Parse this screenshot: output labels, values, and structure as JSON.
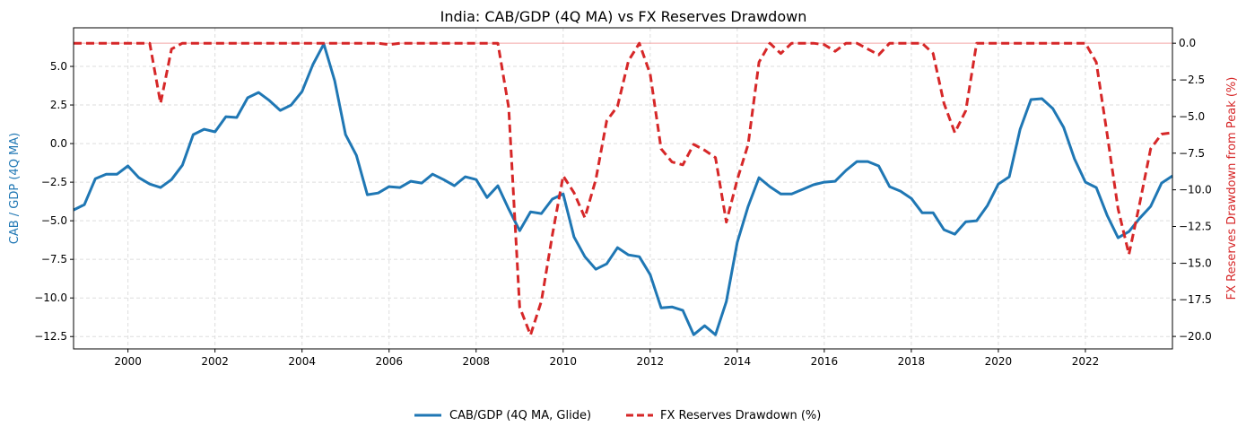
{
  "chart_data": {
    "type": "line",
    "title": "India: CAB/GDP (4Q MA) vs FX Reserves Drawdown",
    "xlabel": "",
    "ylabel_left": "CAB / GDP (4Q MA)",
    "ylabel_right": "FX Reserves Drawdown from Peak (%)",
    "x_start": 1998.75,
    "x_step": 0.25,
    "xlim": [
      1998.75,
      2024.0
    ],
    "ylim_left": [
      -13.3,
      7.5
    ],
    "ylim_right": [
      -20.85,
      1.05
    ],
    "x_ticks": [
      2000,
      2002,
      2004,
      2006,
      2008,
      2010,
      2012,
      2014,
      2016,
      2018,
      2020,
      2022
    ],
    "y_ticks_left": [
      5.0,
      2.5,
      0.0,
      -2.5,
      -5.0,
      -7.5,
      -10.0,
      -12.5
    ],
    "y_ticks_right": [
      0.0,
      -2.5,
      -5.0,
      -7.5,
      -10.0,
      -12.5,
      -15.0,
      -17.5,
      -20.0
    ],
    "grid": true,
    "reference_line_right": 0.0,
    "legend_position": "bottom-center",
    "colors": {
      "cab": "#1f77b4",
      "fx": "#d62728",
      "ref": "#f4a6a6",
      "grid": "#dddddd"
    },
    "series": [
      {
        "name": "CAB/GDP (4Q MA, Glide)",
        "axis": "left",
        "style": "solid",
        "values": [
          -4.3,
          -3.95,
          -2.27,
          -1.98,
          -1.98,
          -1.45,
          -2.21,
          -2.62,
          -2.85,
          -2.33,
          -1.4,
          0.58,
          0.93,
          0.76,
          1.74,
          1.69,
          2.97,
          3.31,
          2.79,
          2.15,
          2.5,
          3.37,
          5.12,
          6.45,
          4.07,
          0.58,
          -0.76,
          -3.31,
          -3.2,
          -2.79,
          -2.85,
          -2.44,
          -2.56,
          -1.98,
          -2.33,
          -2.73,
          -2.15,
          -2.33,
          -3.49,
          -2.73,
          -4.24,
          -5.64,
          -4.42,
          -4.53,
          -3.6,
          -3.26,
          -6.05,
          -7.33,
          -8.14,
          -7.79,
          -6.74,
          -7.21,
          -7.33,
          -8.49,
          -10.64,
          -10.58,
          -10.81,
          -12.38,
          -11.8,
          -12.38,
          -10.23,
          -6.4,
          -4.07,
          -2.21,
          -2.79,
          -3.26,
          -3.26,
          -2.97,
          -2.67,
          -2.5,
          -2.44,
          -1.74,
          -1.16,
          -1.16,
          -1.45,
          -2.79,
          -3.08,
          -3.55,
          -4.48,
          -4.48,
          -5.58,
          -5.87,
          -5.06,
          -5.0,
          -4.01,
          -2.62,
          -2.15,
          0.93,
          2.85,
          2.91,
          2.27,
          1.05,
          -0.99,
          -2.5,
          -2.85,
          -4.65,
          -6.1,
          -5.7,
          -4.83,
          -4.07,
          -2.56,
          -2.09
        ]
      },
      {
        "name": "FX Reserves Drawdown (%)",
        "axis": "right",
        "style": "dashed",
        "values": [
          0,
          0,
          0,
          0,
          0,
          0,
          0,
          0,
          -4.1,
          -0.4,
          0,
          0,
          0,
          0,
          0,
          0,
          0,
          0,
          0,
          0,
          0,
          0,
          0,
          0,
          0,
          0,
          0,
          0,
          0,
          -0.1,
          0,
          0,
          0,
          0,
          0,
          0,
          0,
          0,
          0,
          0,
          -4.4,
          -18.0,
          -19.9,
          -17.6,
          -13.1,
          -9.05,
          -10.2,
          -11.9,
          -9.3,
          -5.3,
          -4.3,
          -1.2,
          0,
          -2.1,
          -7.2,
          -8.1,
          -8.3,
          -6.9,
          -7.3,
          -7.8,
          -12.2,
          -9.3,
          -6.9,
          -1.3,
          0,
          -0.7,
          0,
          0,
          0,
          -0.1,
          -0.55,
          0,
          0,
          -0.4,
          -0.8,
          0,
          0,
          0,
          0,
          -0.7,
          -4.1,
          -6.1,
          -4.6,
          0,
          0,
          0,
          0,
          0,
          0,
          0,
          0,
          0,
          0,
          0,
          -1.3,
          -6.2,
          -11.3,
          -14.4,
          -10.9,
          -7.2,
          -6.2,
          -6.1
        ]
      }
    ]
  }
}
